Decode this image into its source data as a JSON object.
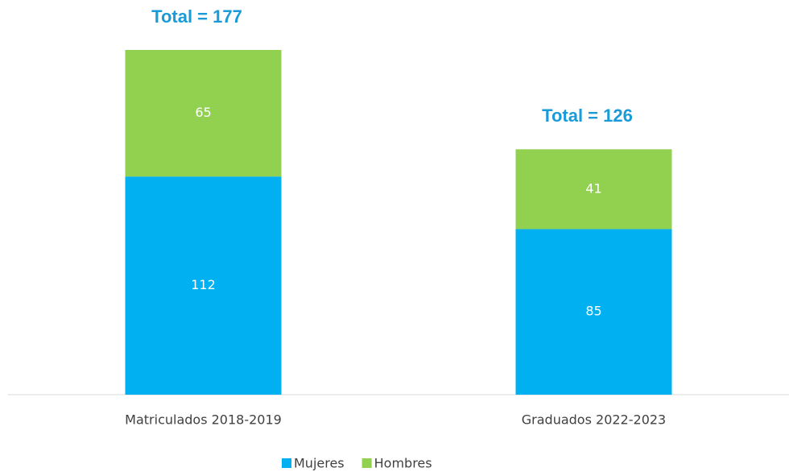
{
  "chart_data": {
    "type": "stacked_bar",
    "categories": [
      "Matriculados 2018-2019",
      "Graduados 2022-2023"
    ],
    "series": [
      {
        "name": "Mujeres",
        "color": "#00b0f0",
        "values": [
          112,
          85
        ]
      },
      {
        "name": "Hombres",
        "color": "#92d050",
        "values": [
          65,
          41
        ]
      }
    ],
    "annotations": [
      "Total =  177",
      "Total =  126"
    ],
    "legend": "bottom"
  }
}
